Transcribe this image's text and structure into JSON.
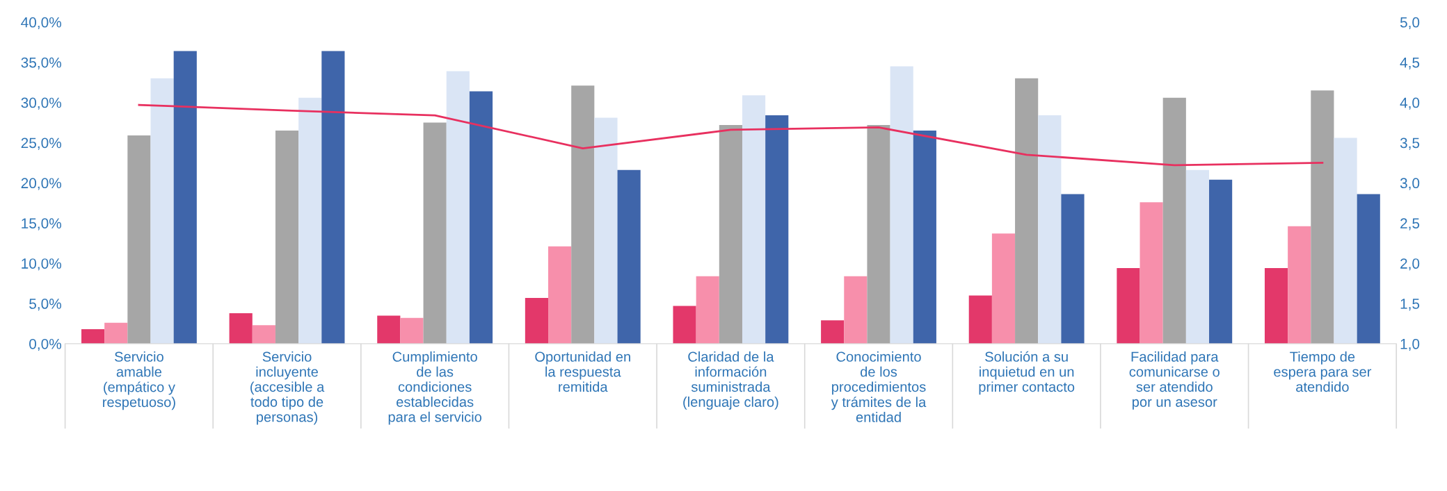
{
  "chart_data": {
    "type": "bar",
    "categories": [
      "Servicio\namable\n(empático y\nrespetuoso)",
      "Servicio\nincluyente\n(accesible a\ntodo tipo de\npersonas)",
      "Cumplimiento\nde las\ncondiciones\nestablecidas\npara el servicio",
      "Oportunidad en\nla respuesta\nremitida",
      "Claridad de la\ninformación\nsuministrada\n(lenguaje claro)",
      "Conocimiento\nde los\nprocedimientos\ny trámites de la\nentidad",
      "Solución a su\ninquietud en un\nprimer contacto",
      "Facilidad para\ncomunicarse o\nser atendido\npor un asesor",
      "Tiempo de\nespera para ser\natendido"
    ],
    "series": [
      {
        "color": "#e3386a",
        "values": [
          1.8,
          3.8,
          3.5,
          5.7,
          4.7,
          2.9,
          6.0,
          9.4,
          9.4
        ]
      },
      {
        "color": "#f78fab",
        "values": [
          2.6,
          2.3,
          3.2,
          12.1,
          8.4,
          8.4,
          13.7,
          17.6,
          14.6
        ]
      },
      {
        "color": "#a6a6a6",
        "values": [
          25.9,
          26.5,
          27.5,
          32.1,
          27.2,
          27.2,
          33.0,
          30.6,
          31.5
        ]
      },
      {
        "color": "#dae5f5",
        "values": [
          33.0,
          30.6,
          33.9,
          28.1,
          30.9,
          34.5,
          28.4,
          21.6,
          25.6
        ]
      },
      {
        "color": "#3f65aa",
        "values": [
          36.4,
          36.4,
          31.4,
          21.6,
          28.4,
          26.5,
          18.6,
          20.4,
          18.6
        ]
      },
      {
        "type": "line",
        "axis": "y2",
        "color": "#e8305f",
        "values": [
          3.97,
          3.9,
          3.84,
          3.43,
          3.66,
          3.69,
          3.35,
          3.22,
          3.25
        ]
      }
    ],
    "ylim": [
      0,
      40
    ],
    "yticks": [
      {
        "value": 0,
        "label": "0,0%"
      },
      {
        "value": 5,
        "label": "5,0%"
      },
      {
        "value": 10,
        "label": "10,0%"
      },
      {
        "value": 15,
        "label": "15,0%"
      },
      {
        "value": 20,
        "label": "20,0%"
      },
      {
        "value": 25,
        "label": "25,0%"
      },
      {
        "value": 30,
        "label": "30,0%"
      },
      {
        "value": 35,
        "label": "35,0%"
      },
      {
        "value": 40,
        "label": "40,0%"
      }
    ],
    "y2lim": [
      1,
      5
    ],
    "y2ticks": [
      {
        "value": 1,
        "label": "1,0"
      },
      {
        "value": 1.5,
        "label": "1,5"
      },
      {
        "value": 2,
        "label": "2,0"
      },
      {
        "value": 2.5,
        "label": "2,5"
      },
      {
        "value": 3,
        "label": "3,0"
      },
      {
        "value": 3.5,
        "label": "3,5"
      },
      {
        "value": 4,
        "label": "4,0"
      },
      {
        "value": 4.5,
        "label": "4,5"
      },
      {
        "value": 5,
        "label": "5,0"
      }
    ],
    "grid": false,
    "marker": "none",
    "line_style": "solid"
  }
}
